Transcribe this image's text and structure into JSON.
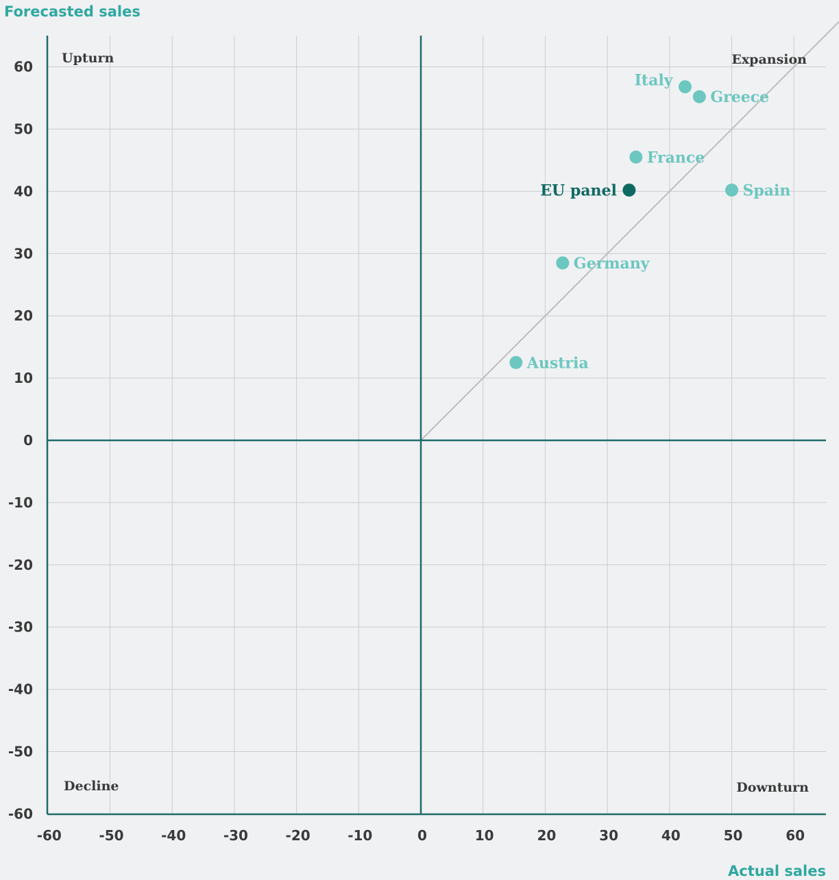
{
  "colors": {
    "background": "#f0f1f3",
    "axis": "#1d6b68",
    "grid": "#cccccc",
    "diagonal": "#bdbdbd",
    "country": "#6cc7c0",
    "panel": "#0f6a63",
    "axis_title": "#2fa8a0"
  },
  "chart_data": {
    "type": "scatter",
    "xlabel": "Actual sales",
    "ylabel": "Forecasted sales",
    "xlim": [
      -60,
      65
    ],
    "ylim": [
      -60,
      65
    ],
    "xticks": [
      -60,
      -50,
      -40,
      -30,
      -20,
      -10,
      0,
      10,
      20,
      30,
      40,
      50,
      60
    ],
    "yticks": [
      60,
      50,
      40,
      30,
      20,
      10,
      0,
      -10,
      -20,
      -30,
      -40,
      -50,
      -60
    ],
    "grid": true,
    "reference_line": "y = x",
    "quadrants": [
      {
        "label": "Upturn",
        "position": "top-left"
      },
      {
        "label": "Expansion",
        "position": "top-right"
      },
      {
        "label": "Decline",
        "position": "bottom-left"
      },
      {
        "label": "Downturn",
        "position": "bottom-right"
      }
    ],
    "points": [
      {
        "label": "Italy",
        "x": 42.5,
        "y": 56.8,
        "highlight": false,
        "label_side": "left"
      },
      {
        "label": "Greece",
        "x": 44.8,
        "y": 55.2,
        "highlight": false,
        "label_side": "right"
      },
      {
        "label": "France",
        "x": 34.6,
        "y": 45.5,
        "highlight": false,
        "label_side": "right"
      },
      {
        "label": "EU panel",
        "x": 33.5,
        "y": 40.2,
        "highlight": true,
        "label_side": "left"
      },
      {
        "label": "Spain",
        "x": 50.0,
        "y": 40.2,
        "highlight": false,
        "label_side": "right"
      },
      {
        "label": "Germany",
        "x": 22.8,
        "y": 28.5,
        "highlight": false,
        "label_side": "right"
      },
      {
        "label": "Austria",
        "x": 15.3,
        "y": 12.5,
        "highlight": false,
        "label_side": "right"
      }
    ]
  }
}
